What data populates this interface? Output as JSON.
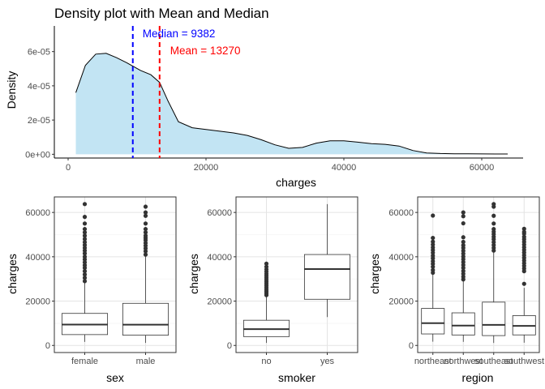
{
  "chart_data": [
    {
      "type": "area",
      "title": "Density plot with Mean and Median",
      "xlabel": "charges",
      "ylabel": "Density",
      "xlim": [
        -2000,
        66000
      ],
      "ylim": [
        -2.2e-06,
        7.5e-05
      ],
      "x_ticks": [
        0,
        20000,
        40000,
        60000
      ],
      "x_tick_labels": [
        "0",
        "20000",
        "40000",
        "60000"
      ],
      "y_ticks": [
        0,
        2e-05,
        4e-05,
        6e-05
      ],
      "y_tick_labels": [
        "0e+00",
        "2e-05",
        "4e-05",
        "6e-05"
      ],
      "fill_color": "#c2e4f3",
      "grid": false,
      "density": {
        "x": [
          1120,
          2500,
          4000,
          5500,
          7000,
          8500,
          9382,
          10500,
          12000,
          13270,
          14500,
          16000,
          18000,
          20000,
          22000,
          24000,
          26000,
          28000,
          30000,
          32000,
          34000,
          36000,
          38000,
          40000,
          42000,
          44000,
          46000,
          48000,
          50000,
          52000,
          54000,
          56000,
          58000,
          60000,
          62000,
          63770
        ],
        "y": [
          3.6e-05,
          5.2e-05,
          5.85e-05,
          5.9e-05,
          5.65e-05,
          5.35e-05,
          5.15e-05,
          4.9e-05,
          4.65e-05,
          4.2e-05,
          3.1e-05,
          1.9e-05,
          1.55e-05,
          1.45e-05,
          1.35e-05,
          1.25e-05,
          1.1e-05,
          8.5e-06,
          5.5e-06,
          3.5e-06,
          4e-06,
          6.5e-06,
          7.9e-06,
          7.9e-06,
          7.1e-06,
          6.2e-06,
          5.8e-06,
          4.8e-06,
          2.2e-06,
          8e-07,
          4.5e-07,
          3e-07,
          2.5e-07,
          2e-07,
          1.8e-07,
          1.5e-07
        ]
      },
      "annotations": [
        {
          "label": "Median = 9382",
          "x": 9382,
          "color": "#0000ff"
        },
        {
          "label": "Mean = 13270",
          "x": 13270,
          "color": "#ff0000"
        }
      ]
    },
    {
      "type": "box",
      "xlabel": "sex",
      "ylabel": "charges",
      "ylim": [
        -3200,
        67000
      ],
      "y_ticks": [
        0,
        20000,
        40000,
        60000
      ],
      "y_tick_labels": [
        "0",
        "20000",
        "40000",
        "60000"
      ],
      "categories": [
        "female",
        "male"
      ],
      "grid": true,
      "boxes": [
        {
          "min": 1610,
          "q1": 4890,
          "median": 9410,
          "q3": 14450,
          "whisker_high": 28800,
          "outliers": [
            29000,
            30500,
            32000,
            33500,
            35000,
            36200,
            37500,
            38800,
            40000,
            41500,
            42800,
            44000,
            45300,
            46600,
            48000,
            49500,
            51000,
            52500,
            55000,
            58000,
            63770
          ]
        },
        {
          "min": 1120,
          "q1": 4620,
          "median": 9370,
          "q3": 19000,
          "whisker_high": 40700,
          "outliers": [
            41000,
            42500,
            43800,
            45000,
            46200,
            47500,
            48500,
            49500,
            51000,
            52500,
            55000,
            58500,
            60000,
            62600
          ]
        }
      ]
    },
    {
      "type": "box",
      "xlabel": "smoker",
      "ylabel": "charges",
      "ylim": [
        -3200,
        67000
      ],
      "y_ticks": [
        0,
        20000,
        40000,
        60000
      ],
      "y_tick_labels": [
        "0",
        "20000",
        "40000",
        "60000"
      ],
      "categories": [
        "no",
        "yes"
      ],
      "grid": true,
      "boxes": [
        {
          "min": 1120,
          "q1": 3990,
          "median": 7350,
          "q3": 11360,
          "whisker_high": 22400,
          "outliers": [
            22700,
            23500,
            24300,
            25100,
            26000,
            26900,
            27800,
            28700,
            29600,
            30500,
            31400,
            32300,
            33300,
            34300,
            35500,
            36900
          ]
        },
        {
          "min": 12800,
          "q1": 20830,
          "median": 34460,
          "q3": 41020,
          "whisker_high": 63770,
          "outliers": []
        }
      ]
    },
    {
      "type": "box",
      "xlabel": "region",
      "ylabel": "charges",
      "ylim": [
        -3200,
        67000
      ],
      "y_ticks": [
        0,
        20000,
        40000,
        60000
      ],
      "y_tick_labels": [
        "0",
        "20000",
        "40000",
        "60000"
      ],
      "categories": [
        "northeast",
        "northwest",
        "southeast",
        "southwest"
      ],
      "grid": true,
      "boxes": [
        {
          "min": 1700,
          "q1": 5190,
          "median": 10060,
          "q3": 16690,
          "whisker_high": 32100,
          "outliers": [
            32800,
            34000,
            35500,
            36800,
            38000,
            39300,
            40500,
            41800,
            43000,
            44200,
            45500,
            46800,
            48500,
            58600
          ]
        },
        {
          "min": 1620,
          "q1": 4720,
          "median": 8970,
          "q3": 14710,
          "whisker_high": 29200,
          "outliers": [
            29800,
            31000,
            32300,
            33600,
            35000,
            36300,
            37600,
            38900,
            40100,
            41400,
            42700,
            44000,
            45200,
            46700,
            48800,
            55100,
            58300,
            60000
          ]
        },
        {
          "min": 1120,
          "q1": 4440,
          "median": 9290,
          "q3": 19530,
          "whisker_high": 42100,
          "outliers": [
            42800,
            44000,
            45300,
            46600,
            47900,
            49000,
            50200,
            51300,
            52500,
            55000,
            58500,
            62600,
            63770
          ]
        },
        {
          "min": 1240,
          "q1": 4750,
          "median": 8800,
          "q3": 13460,
          "whisker_high": 26000,
          "outliers": [
            27800,
            33500,
            34700,
            35900,
            37100,
            38300,
            39500,
            40700,
            41900,
            43100,
            44300,
            45500,
            46700,
            47900,
            49000,
            50400,
            51200,
            52600
          ]
        }
      ]
    }
  ]
}
